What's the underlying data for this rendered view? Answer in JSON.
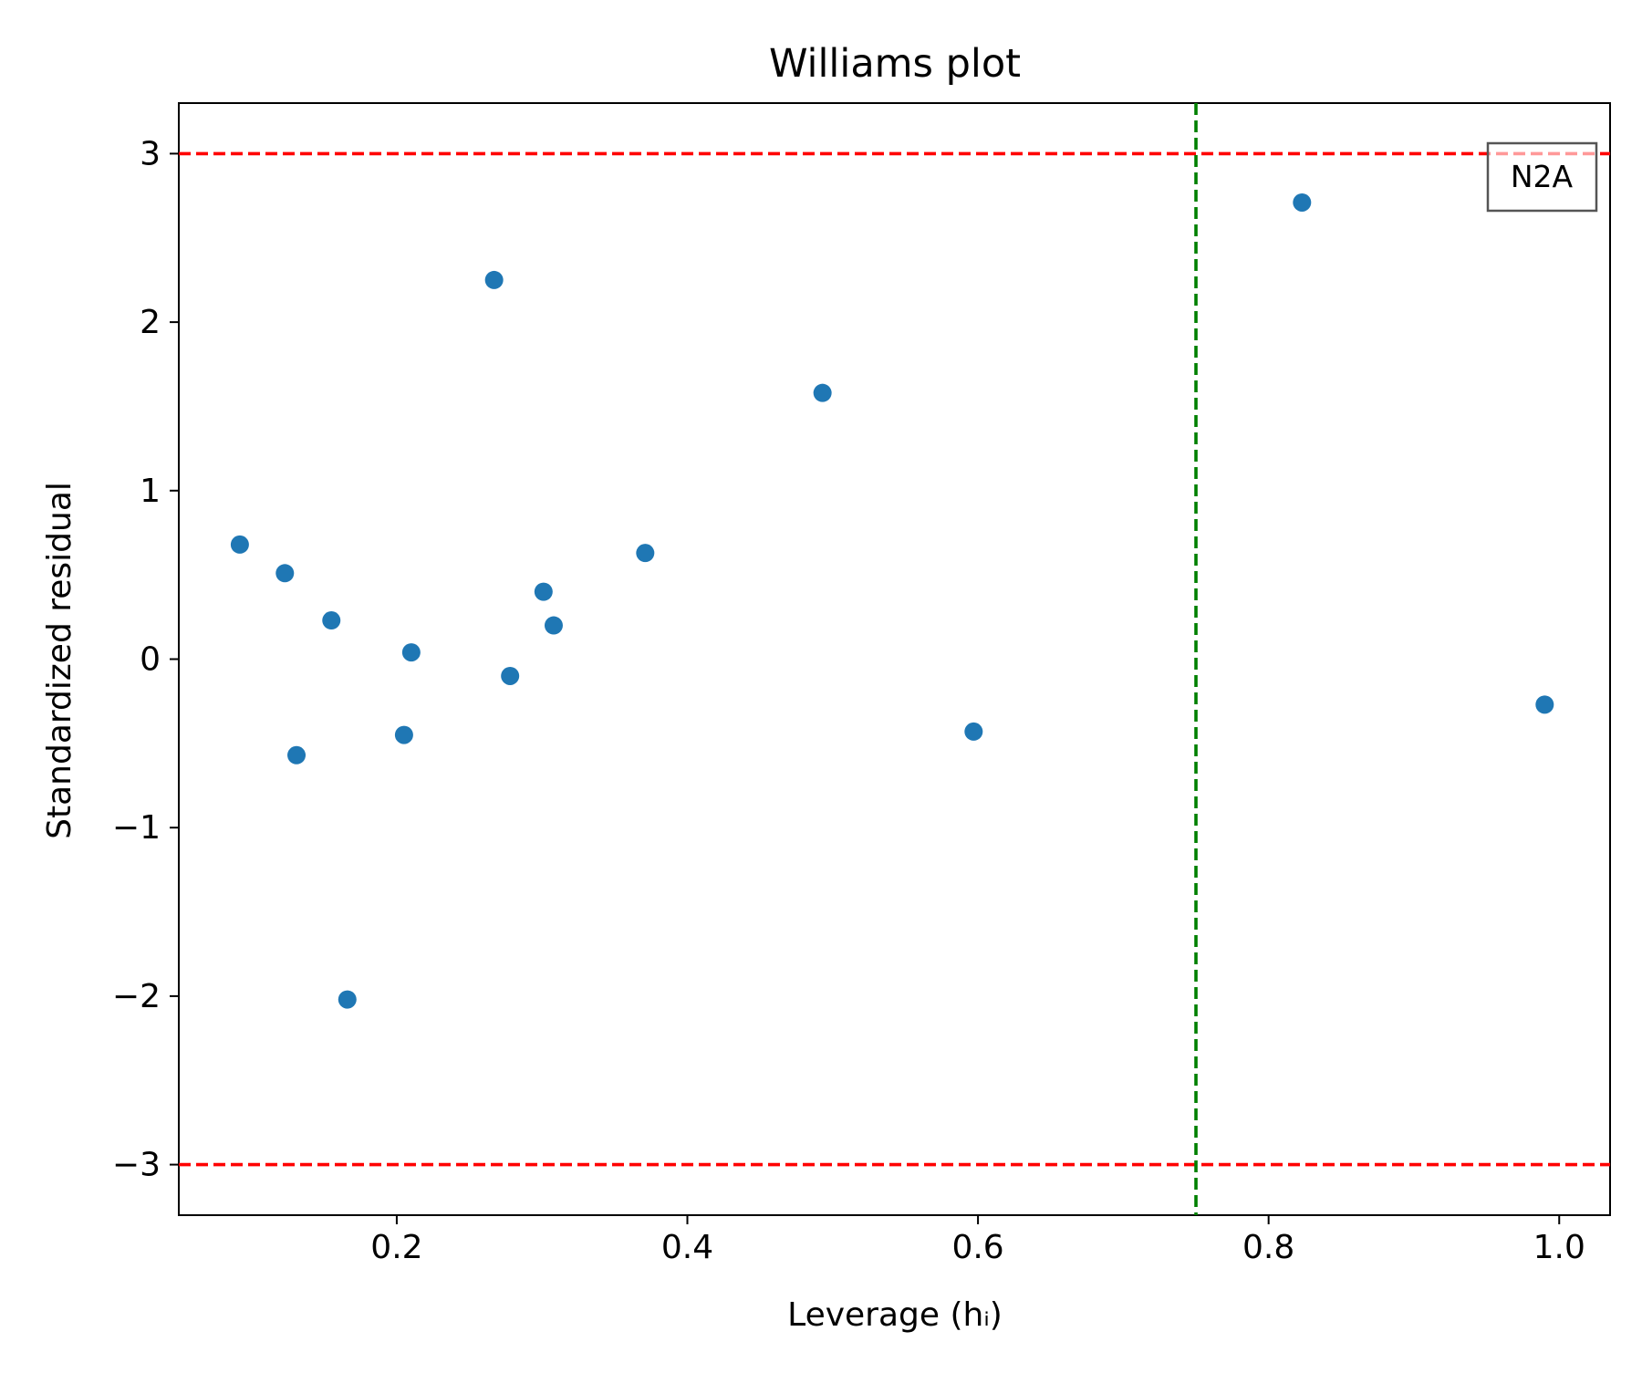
{
  "chart_data": {
    "type": "scatter",
    "title": "Williams plot",
    "xlabel": "Leverage (hᵢ)",
    "ylabel": "Standardized residual",
    "xlim": [
      0.05,
      1.035
    ],
    "ylim": [
      -3.3,
      3.3
    ],
    "xticks": [
      0.2,
      0.4,
      0.6,
      0.8,
      1.0
    ],
    "xtick_labels": [
      "0.2",
      "0.4",
      "0.6",
      "0.8",
      "1.0"
    ],
    "yticks": [
      -3,
      -2,
      -1,
      0,
      1,
      2,
      3
    ],
    "ytick_labels": [
      "−3",
      "−2",
      "−1",
      "0",
      "1",
      "2",
      "3"
    ],
    "grid": false,
    "series": [
      {
        "color": "#1f77b4",
        "points": [
          {
            "x": 0.092,
            "y": 0.68
          },
          {
            "x": 0.123,
            "y": 0.51
          },
          {
            "x": 0.131,
            "y": -0.57
          },
          {
            "x": 0.155,
            "y": 0.23
          },
          {
            "x": 0.166,
            "y": -2.02
          },
          {
            "x": 0.205,
            "y": -0.45
          },
          {
            "x": 0.21,
            "y": 0.04
          },
          {
            "x": 0.267,
            "y": 2.25
          },
          {
            "x": 0.278,
            "y": -0.1
          },
          {
            "x": 0.301,
            "y": 0.4
          },
          {
            "x": 0.308,
            "y": 0.2
          },
          {
            "x": 0.371,
            "y": 0.63
          },
          {
            "x": 0.493,
            "y": 1.58
          },
          {
            "x": 0.597,
            "y": -0.43
          },
          {
            "x": 0.823,
            "y": 2.71
          },
          {
            "x": 0.99,
            "y": -0.27
          }
        ]
      }
    ],
    "reference_lines": [
      {
        "orientation": "horizontal",
        "value": 3,
        "color": "#ff0000",
        "style": "dashed"
      },
      {
        "orientation": "horizontal",
        "value": -3,
        "color": "#ff0000",
        "style": "dashed"
      },
      {
        "orientation": "vertical",
        "value": 0.75,
        "color": "#008000",
        "style": "dashed"
      }
    ],
    "annotations": [
      {
        "text": "N2A",
        "placement": "top-right"
      }
    ]
  }
}
